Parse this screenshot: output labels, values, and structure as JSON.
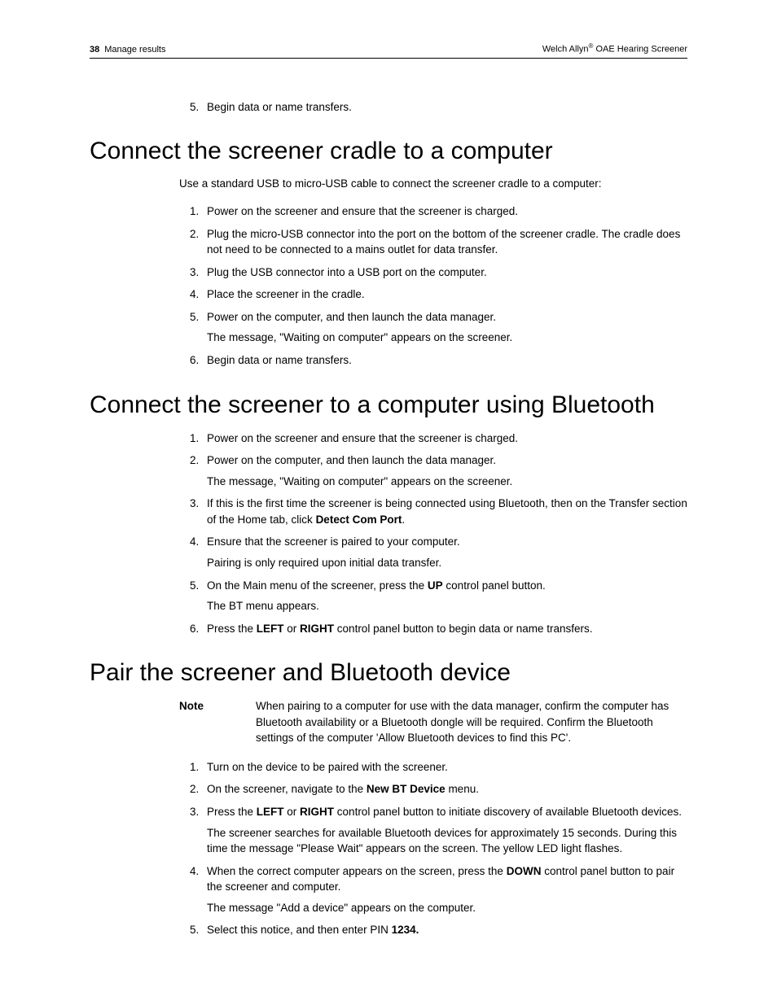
{
  "header": {
    "page_number": "38",
    "section_name": "Manage results",
    "brand": "Welch Allyn",
    "reg_mark": "®",
    "product": " OAE Hearing Screener"
  },
  "prelist": {
    "start": 5,
    "items": [
      {
        "text": "Begin data or name transfers."
      }
    ]
  },
  "section1": {
    "title": "Connect the screener cradle to a computer",
    "intro": "Use a standard USB to micro-USB cable to connect the screener cradle to a computer:",
    "steps": [
      {
        "text": "Power on the screener and ensure that the screener is charged."
      },
      {
        "text": "Plug the micro-USB connector into the port on the bottom of the screener cradle. The cradle does not need to be connected to a mains outlet for data transfer."
      },
      {
        "text": "Plug the USB connector into a USB port on the computer."
      },
      {
        "text": "Place the screener in the cradle."
      },
      {
        "text": "Power on the computer, and then launch the data manager.",
        "subtext": "The message, \"Waiting on computer\" appears on the screener."
      },
      {
        "text": "Begin data or name transfers."
      }
    ]
  },
  "section2": {
    "title": "Connect the screener to a computer using Bluetooth",
    "steps": [
      {
        "text": "Power on the screener and ensure that the screener is charged."
      },
      {
        "text": "Power on the computer, and then launch the data manager.",
        "subtext": "The message, \"Waiting on computer\" appears on the screener."
      },
      {
        "pre": "If this is the first time the screener is being connected using Bluetooth, then on the Transfer section of the Home tab, click ",
        "bold": "Detect Com Port",
        "post": "."
      },
      {
        "text": "Ensure that the screener is paired to your computer.",
        "subtext": "Pairing is only required upon initial data transfer."
      },
      {
        "pre": "On the Main menu of the screener, press the ",
        "bold": "UP",
        "post": " control panel button.",
        "subtext": "The BT menu appears."
      },
      {
        "pre": "Press the ",
        "bold": "LEFT",
        "mid": " or ",
        "bold2": "RIGHT",
        "post": " control panel button to begin data or name transfers."
      }
    ]
  },
  "section3": {
    "title": "Pair the screener and Bluetooth device",
    "note_label": "Note",
    "note_text": "When pairing to a computer for use with the data manager, confirm the computer has Bluetooth availability or a Bluetooth dongle will be required. Confirm the Bluetooth settings of the computer 'Allow Bluetooth devices to find this PC'.",
    "steps": [
      {
        "text": "Turn on the device to be paired with the screener."
      },
      {
        "pre": "On the screener, navigate to the ",
        "bold": "New BT Device",
        "post": " menu."
      },
      {
        "pre": "Press the ",
        "bold": "LEFT",
        "mid": " or ",
        "bold2": "RIGHT",
        "post": " control panel button to initiate discovery of available Bluetooth devices.",
        "subtext": "The screener searches for available Bluetooth devices for approximately 15 seconds. During this time the message \"Please Wait\" appears on the screen. The yellow LED light flashes."
      },
      {
        "pre": "When the correct computer appears on the screen, press the ",
        "bold": "DOWN",
        "post": " control panel button to pair the screener and computer.",
        "subtext": "The message \"Add a device\" appears on the computer."
      },
      {
        "pre": "Select this notice, and then enter PIN ",
        "bold": "1234.",
        "post": ""
      }
    ]
  }
}
